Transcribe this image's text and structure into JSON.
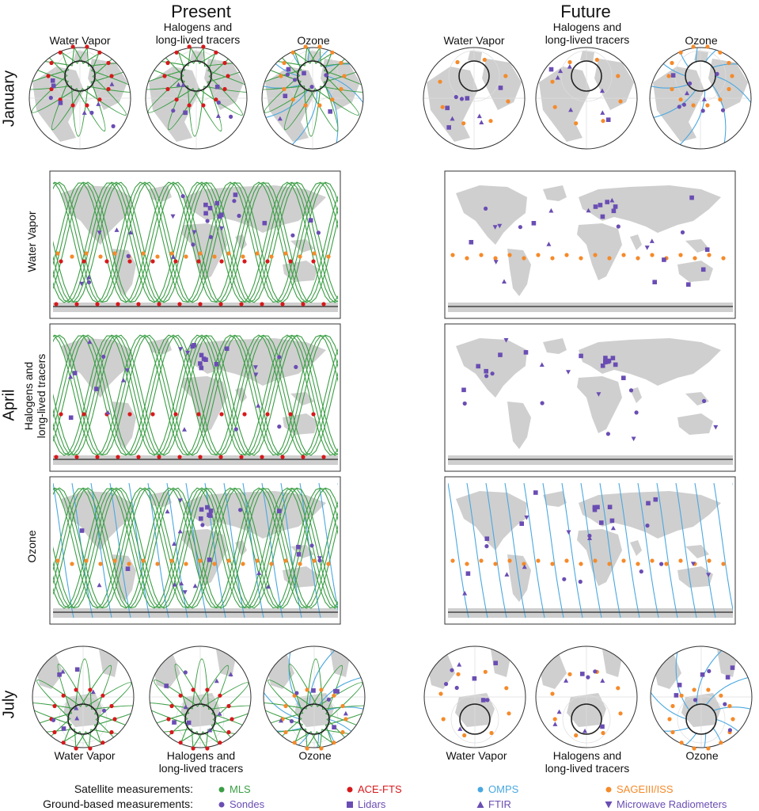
{
  "columns": {
    "present": "Present",
    "future": "Future"
  },
  "months": {
    "january": "January",
    "april": "April",
    "july": "July"
  },
  "panel_titles": {
    "water_vapor": "Water Vapor",
    "halogens_line1": "Halogens and",
    "halogens_line2": "long-lived tracers",
    "ozone": "Ozone"
  },
  "legend": {
    "satellite_label": "Satellite measurements:",
    "ground_label": "Ground-based measurements:",
    "satellite": [
      {
        "name": "MLS",
        "color": "#3a9e44",
        "shape": "circle"
      },
      {
        "name": "ACE-FTS",
        "color": "#d7191c",
        "shape": "circle"
      },
      {
        "name": "OMPS",
        "color": "#4aa8e0",
        "shape": "circle"
      },
      {
        "name": "SAGEIII/ISS",
        "color": "#f58a2a",
        "shape": "circle"
      }
    ],
    "ground": [
      {
        "name": "Sondes",
        "color": "#6a4db3",
        "shape": "circle"
      },
      {
        "name": "Lidars",
        "color": "#6a4db3",
        "shape": "square"
      },
      {
        "name": "FTIR",
        "color": "#6a4db3",
        "shape": "triangle"
      },
      {
        "name": "Microwave Radiometers",
        "color": "#6a4db3",
        "shape": "triangle-down"
      }
    ]
  },
  "colors": {
    "land": "#cfcfcf",
    "mls": "#3a9e44",
    "ace": "#d7191c",
    "omps": "#4aa8e0",
    "sage": "#f58a2a",
    "ground": "#6a4db3"
  }
}
